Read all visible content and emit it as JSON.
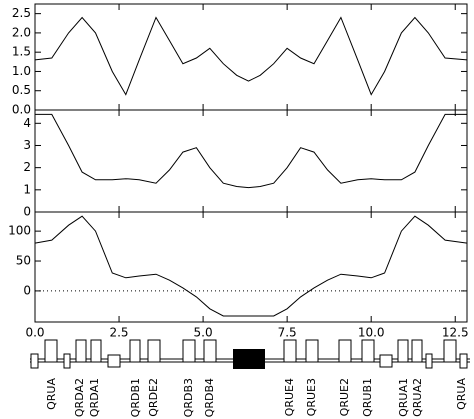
{
  "chart_data": [
    {
      "type": "line",
      "x": [
        0,
        0.5,
        1.0,
        1.4,
        1.8,
        2.3,
        2.7,
        3.1,
        3.6,
        4.0,
        4.4,
        4.8,
        5.2,
        5.6,
        6.0,
        6.35,
        6.7,
        7.1,
        7.5,
        7.9,
        8.3,
        8.7,
        9.1,
        9.6,
        10.0,
        10.4,
        10.9,
        11.3,
        11.7,
        12.2,
        12.85
      ],
      "series": [
        {
          "color": "#000000",
          "values": [
            1.3,
            1.35,
            2.0,
            2.4,
            2.0,
            1.0,
            0.4,
            1.3,
            2.4,
            1.8,
            1.2,
            1.35,
            1.6,
            1.2,
            0.9,
            0.75,
            0.9,
            1.2,
            1.6,
            1.35,
            1.2,
            1.8,
            2.4,
            1.3,
            0.4,
            1.0,
            2.0,
            2.4,
            2.0,
            1.35,
            1.3
          ]
        }
      ],
      "xlim": [
        0,
        12.85
      ],
      "xticks": [
        {
          "value": 0,
          "label": "0.0"
        },
        2.5,
        {
          "value": 5,
          "label": "5.0"
        },
        7.5,
        {
          "value": 10,
          "label": "10.0"
        },
        12.5
      ],
      "ylim": [
        0,
        2.75
      ],
      "yticks": [
        {
          "value": 0,
          "label": "0.0"
        },
        0.5,
        {
          "value": 1,
          "label": "1.0"
        },
        1.5,
        {
          "value": 2,
          "label": "2.0"
        },
        2.5
      ]
    },
    {
      "type": "line",
      "x": [
        0,
        0.5,
        1.0,
        1.4,
        1.8,
        2.3,
        2.7,
        3.1,
        3.6,
        4.0,
        4.4,
        4.8,
        5.2,
        5.6,
        6.0,
        6.35,
        6.7,
        7.1,
        7.5,
        7.9,
        8.3,
        8.7,
        9.1,
        9.6,
        10.0,
        10.4,
        10.9,
        11.3,
        11.7,
        12.2,
        12.85
      ],
      "series": [
        {
          "color": "#000000",
          "values": [
            4.4,
            4.4,
            3.0,
            1.8,
            1.45,
            1.45,
            1.5,
            1.45,
            1.3,
            1.9,
            2.7,
            2.9,
            2.0,
            1.3,
            1.15,
            1.1,
            1.15,
            1.3,
            2.0,
            2.9,
            2.7,
            1.9,
            1.3,
            1.45,
            1.5,
            1.45,
            1.45,
            1.8,
            3.0,
            4.4,
            4.4
          ]
        }
      ],
      "xlim": [
        0,
        12.85
      ],
      "xticks": [
        {
          "value": 0,
          "label": "0.0"
        },
        2.5,
        {
          "value": 5,
          "label": "5.0"
        },
        7.5,
        {
          "value": 10,
          "label": "10.0"
        },
        12.5
      ],
      "ylim": [
        0,
        4.6
      ],
      "yticks": [
        0,
        1,
        2,
        3,
        4
      ]
    },
    {
      "type": "line",
      "x": [
        0,
        0.5,
        1.0,
        1.4,
        1.8,
        2.3,
        2.7,
        3.1,
        3.6,
        4.0,
        4.4,
        4.8,
        5.2,
        5.6,
        6.0,
        6.35,
        6.7,
        7.1,
        7.5,
        7.9,
        8.3,
        8.7,
        9.1,
        9.6,
        10.0,
        10.4,
        10.9,
        11.3,
        11.7,
        12.2,
        12.85
      ],
      "series": [
        {
          "color": "#000000",
          "values": [
            80,
            85,
            110,
            125,
            100,
            30,
            22,
            25,
            28,
            18,
            5,
            -10,
            -30,
            -42,
            -42,
            -42,
            -42,
            -42,
            -30,
            -10,
            5,
            18,
            28,
            25,
            22,
            30,
            100,
            125,
            110,
            85,
            80
          ]
        }
      ],
      "xlim": [
        0,
        12.85
      ],
      "xticks": [
        {
          "value": 0,
          "label": "0.0"
        },
        2.5,
        {
          "value": 5,
          "label": "5.0"
        },
        7.5,
        {
          "value": 10,
          "label": "10.0"
        },
        12.5
      ],
      "ylim": [
        -52,
        132
      ],
      "yticks": [
        0,
        50,
        100
      ],
      "hline": 0
    }
  ],
  "lattice": {
    "labels": [
      "QRUA",
      "QRDA2",
      "QRDA1",
      "QRDB1",
      "QRDE2",
      "QRDB3",
      "QRDB4",
      "QRUE4",
      "QRUE3",
      "QRUE2",
      "QRUB1",
      "QRUA1",
      "QRUA2",
      "QRUA"
    ]
  }
}
